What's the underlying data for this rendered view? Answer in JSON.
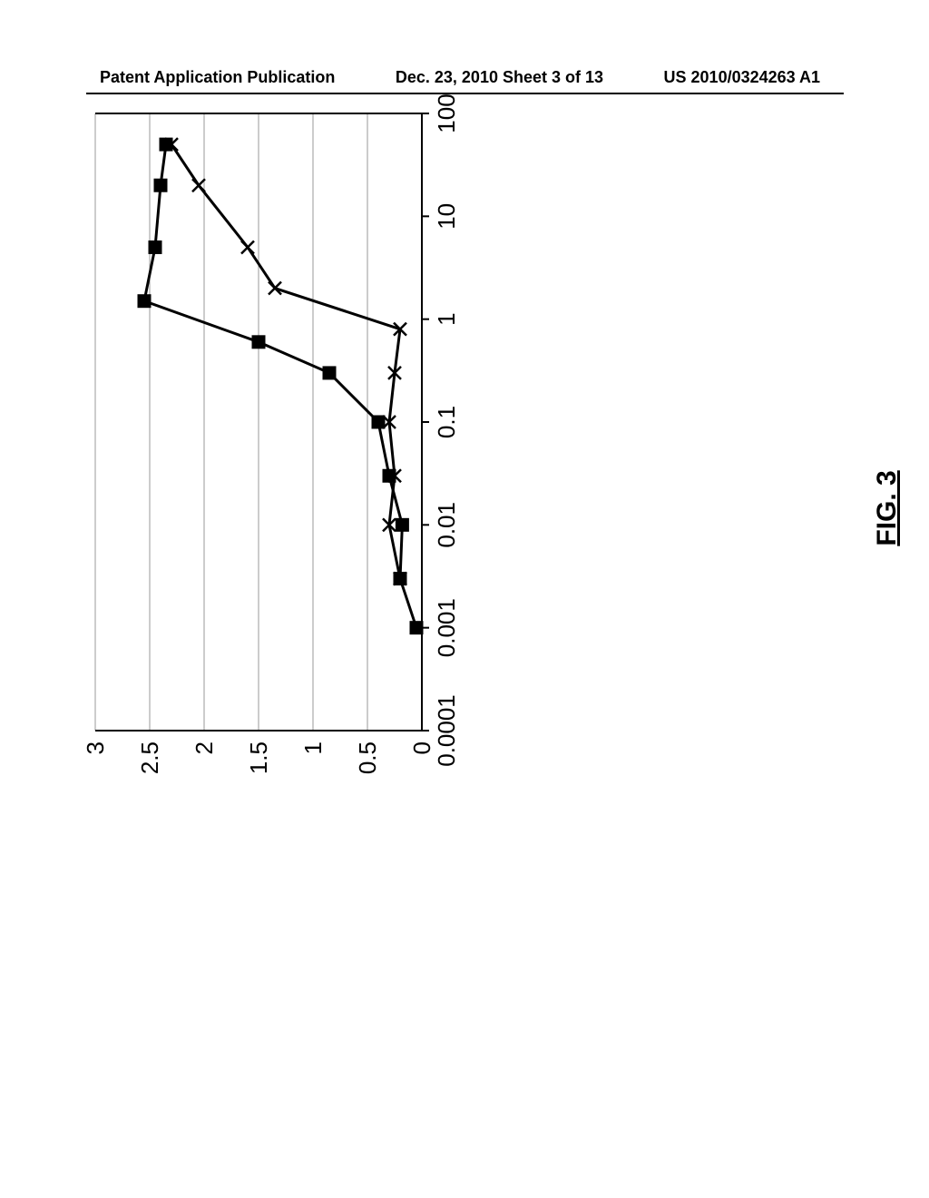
{
  "header": {
    "left": "Patent Application Publication",
    "center": "Dec. 23, 2010  Sheet 3 of 13",
    "right": "US 2010/0324263 A1"
  },
  "figure": {
    "caption": "FIG. 3",
    "chart": {
      "type": "line",
      "background_color": "#ffffff",
      "grid_color": "#9a9a9a",
      "axis_color": "#000000",
      "line_color": "#000000",
      "line_width": 3,
      "marker_size": 7,
      "ylim": [
        0,
        3
      ],
      "ytick_step": 0.5,
      "ytick_labels": [
        "0",
        "0.5",
        "1",
        "1.5",
        "2",
        "2.5",
        "3"
      ],
      "xscale": "log",
      "xlim": [
        0.0001,
        100
      ],
      "xtick_values": [
        0.0001,
        0.001,
        0.01,
        0.1,
        1,
        10,
        100
      ],
      "xtick_labels": [
        "0.0001",
        "0.001",
        "0.01",
        "0.1",
        "1",
        "10",
        "100"
      ],
      "tick_fontsize": 26,
      "series": [
        {
          "name": "series-a",
          "marker": "square",
          "x": [
            0.001,
            0.003,
            0.01,
            0.03,
            0.1,
            0.3,
            0.6,
            1.5,
            5,
            20,
            50
          ],
          "y": [
            0.05,
            0.2,
            0.18,
            0.3,
            0.4,
            0.85,
            1.5,
            2.55,
            2.45,
            2.4,
            2.35
          ]
        },
        {
          "name": "series-b",
          "marker": "x",
          "x": [
            0.003,
            0.01,
            0.03,
            0.1,
            0.3,
            0.8,
            2,
            5,
            20,
            50
          ],
          "y": [
            0.2,
            0.3,
            0.25,
            0.3,
            0.25,
            0.2,
            1.35,
            1.6,
            2.05,
            2.3
          ]
        }
      ]
    }
  }
}
